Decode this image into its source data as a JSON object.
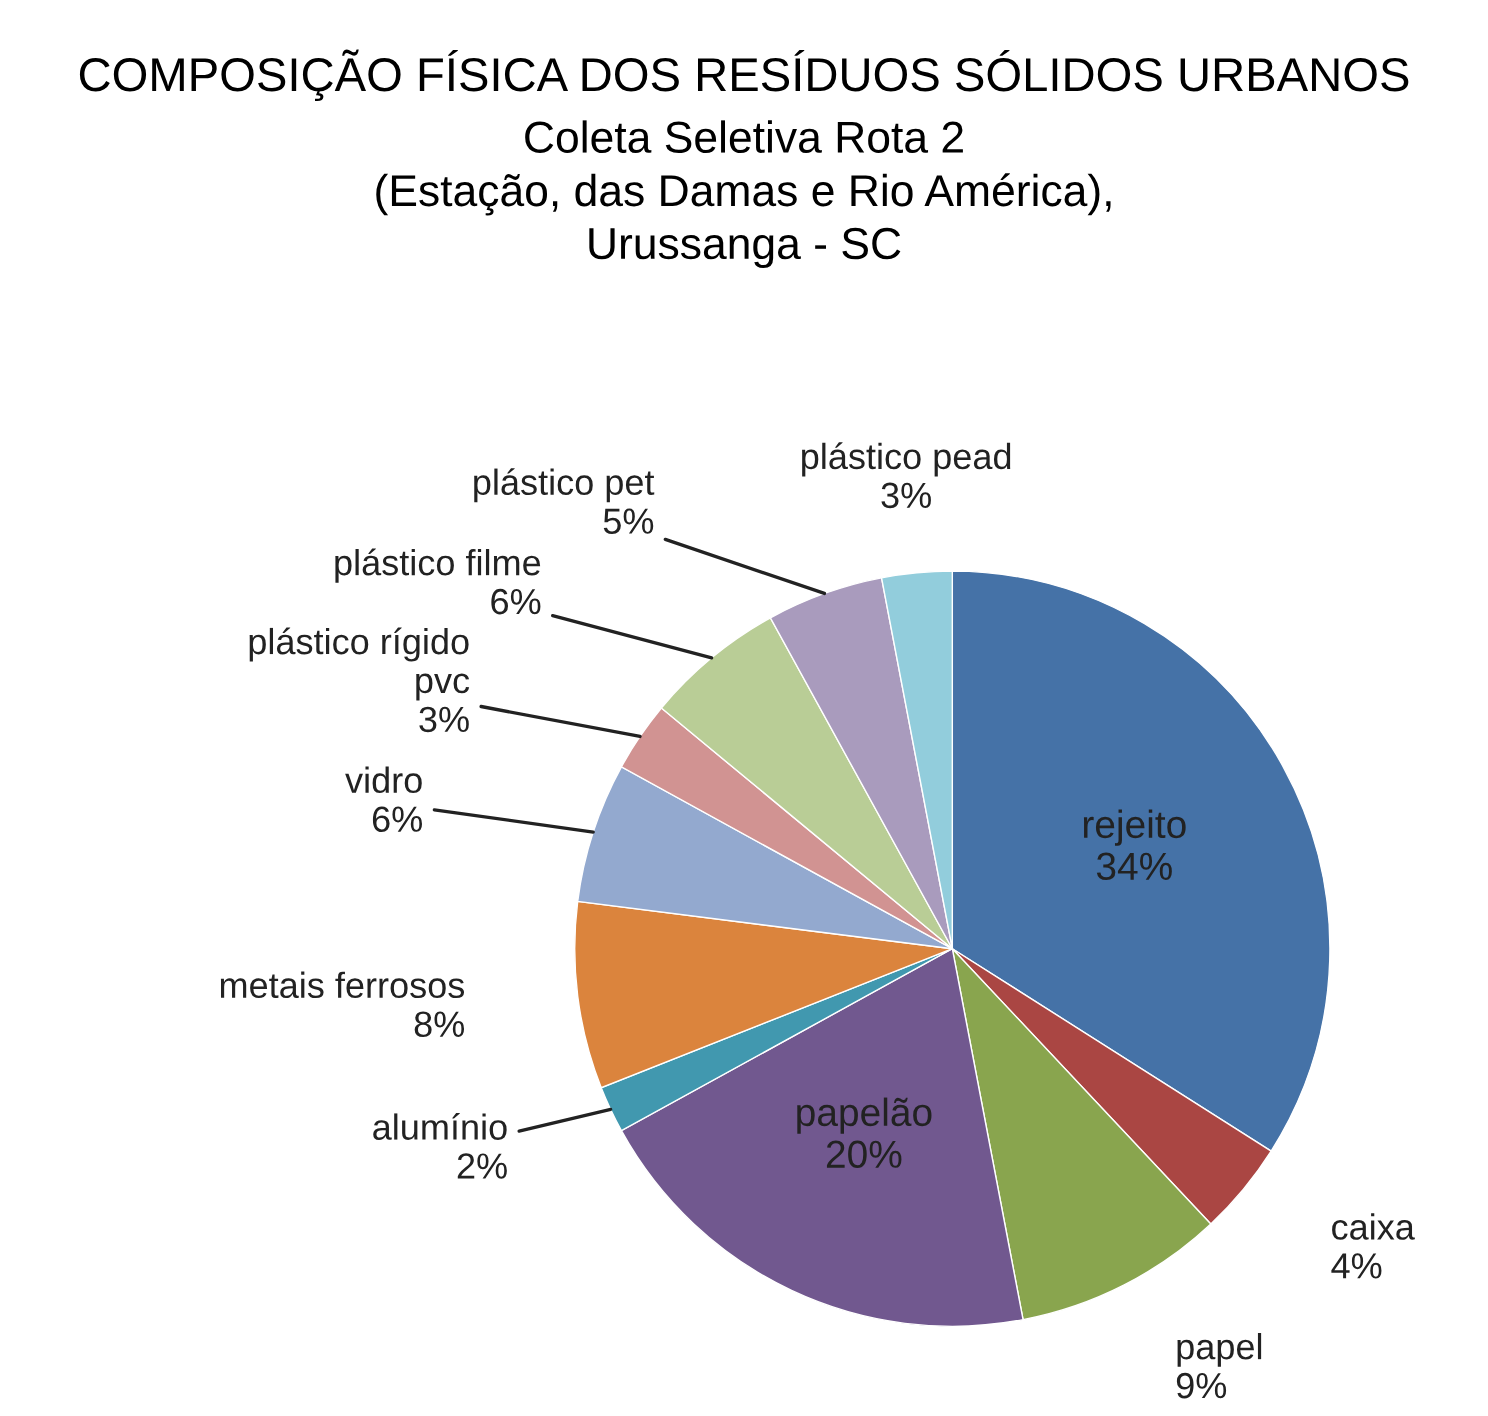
{
  "chart_data": {
    "type": "pie",
    "title": "COMPOSIÇÃO FÍSICA DOS RESÍDUOS SÓLIDOS URBANOS",
    "subtitle": "Coleta Seletiva Rota 2\n(Estação, das Damas e Rio América),\nUrussanga - SC",
    "categories": [
      "rejeito",
      "caixa",
      "papel",
      "papelão",
      "alumínio",
      "metais ferrosos",
      "vidro",
      "plástico rígido\npvc",
      "plástico filme",
      "plástico pet",
      "plástico pead"
    ],
    "values": [
      34,
      4,
      9,
      20,
      2,
      8,
      6,
      3,
      6,
      5,
      3
    ],
    "value_labels": [
      "34%",
      "4%",
      "9%",
      "20%",
      "2%",
      "8%",
      "6%",
      "3%",
      "6%",
      "5%",
      "3%"
    ],
    "colors": [
      "#4572a7",
      "#aa4643",
      "#89a54e",
      "#71588f",
      "#4198af",
      "#db843d",
      "#93a9cf",
      "#d19392",
      "#b9cd96",
      "#a99bbd",
      "#92cddc"
    ],
    "legend": false
  }
}
